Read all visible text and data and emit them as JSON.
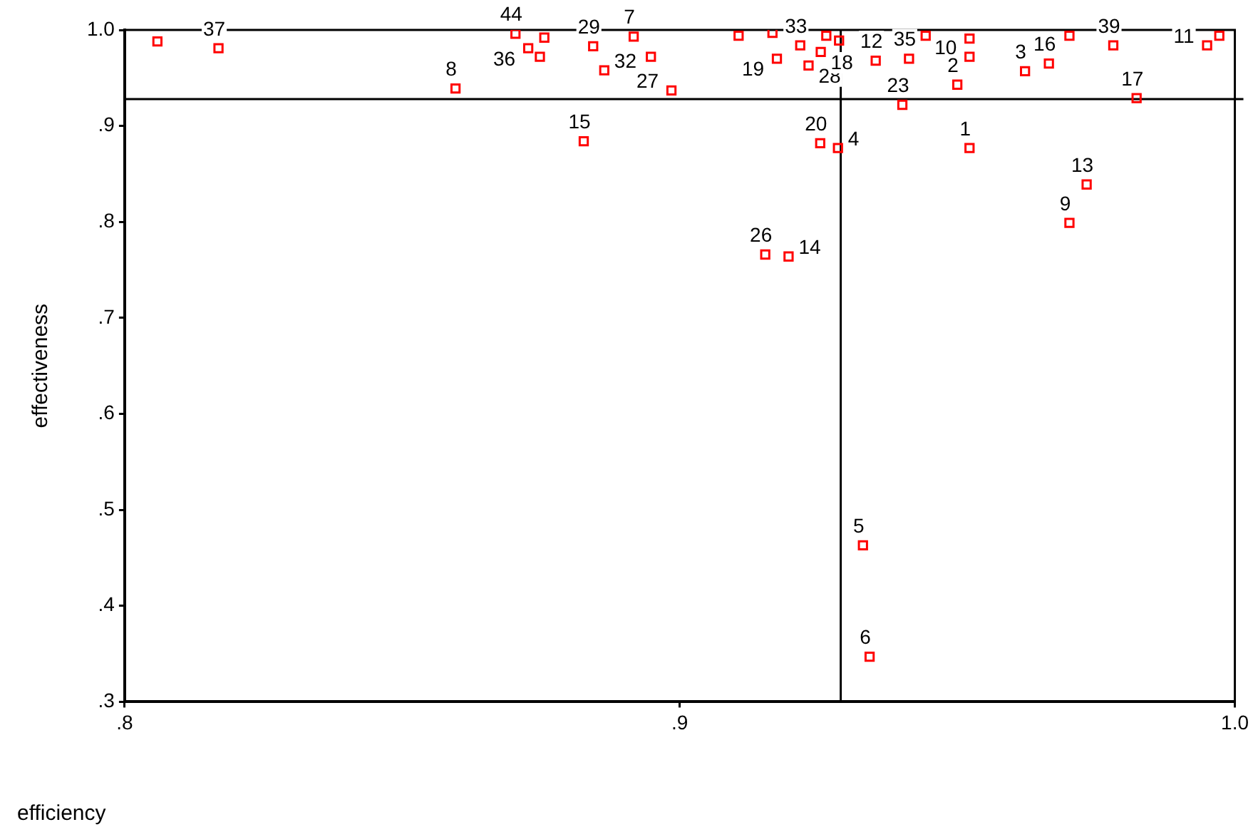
{
  "chart_data": {
    "type": "scatter",
    "xlabel": "efficiency",
    "ylabel": "effectiveness",
    "x": [
      0.8059,
      0.8169,
      0.8596,
      0.8704,
      0.8727,
      0.8756,
      0.8748,
      0.8844,
      0.8864,
      0.8917,
      0.8948,
      0.8985,
      0.8827,
      0.9106,
      0.9167,
      0.9175,
      0.9217,
      0.9232,
      0.9254,
      0.9264,
      0.9287,
      0.9353,
      0.9413,
      0.9443,
      0.9401,
      0.9522,
      0.9522,
      0.95,
      0.9522,
      0.9622,
      0.9665,
      0.9702,
      0.9781,
      0.9823,
      0.995,
      0.9972,
      0.9253,
      0.9285,
      0.9733,
      0.9702,
      0.9154,
      0.9196,
      0.933,
      0.9342
    ],
    "series": [
      {
        "color": "#ff0000",
        "values": [
          0.988,
          0.981,
          0.939,
          0.996,
          0.981,
          0.992,
          0.972,
          0.983,
          0.958,
          0.993,
          0.972,
          0.937,
          0.884,
          0.994,
          0.997,
          0.97,
          0.984,
          0.963,
          0.977,
          0.994,
          0.989,
          0.968,
          0.97,
          0.994,
          0.922,
          0.991,
          0.972,
          0.943,
          0.877,
          0.957,
          0.965,
          0.994,
          0.984,
          0.929,
          0.984,
          0.994,
          0.882,
          0.877,
          0.839,
          0.799,
          0.766,
          0.764,
          0.463,
          0.347
        ]
      }
    ],
    "annotations": [
      {
        "text": "37",
        "x": 0.8169,
        "y": 0.981
      },
      {
        "text": "8",
        "x": 0.8596,
        "y": 0.939
      },
      {
        "text": "44",
        "x": 0.8704,
        "y": 0.996
      },
      {
        "text": "36",
        "x": 0.8727,
        "y": 0.981
      },
      {
        "text": "29",
        "x": 0.8844,
        "y": 0.983
      },
      {
        "text": "32",
        "x": 0.8864,
        "y": 0.958
      },
      {
        "text": "7",
        "x": 0.8917,
        "y": 0.993
      },
      {
        "text": "27",
        "x": 0.8985,
        "y": 0.937
      },
      {
        "text": "15",
        "x": 0.8827,
        "y": 0.884
      },
      {
        "text": "19",
        "x": 0.9175,
        "y": 0.97
      },
      {
        "text": "33",
        "x": 0.9217,
        "y": 0.984
      },
      {
        "text": "28",
        "x": 0.9232,
        "y": 0.963
      },
      {
        "text": "18",
        "x": 0.9254,
        "y": 0.977
      },
      {
        "text": "12",
        "x": 0.9353,
        "y": 0.968
      },
      {
        "text": "35",
        "x": 0.9413,
        "y": 0.97
      },
      {
        "text": "23",
        "x": 0.9401,
        "y": 0.922
      },
      {
        "text": "10",
        "x": 0.9522,
        "y": 0.972
      },
      {
        "text": "2",
        "x": 0.95,
        "y": 0.943
      },
      {
        "text": "1",
        "x": 0.9522,
        "y": 0.877
      },
      {
        "text": "3",
        "x": 0.9622,
        "y": 0.957
      },
      {
        "text": "16",
        "x": 0.9665,
        "y": 0.965
      },
      {
        "text": "39",
        "x": 0.9781,
        "y": 0.984
      },
      {
        "text": "17",
        "x": 0.9823,
        "y": 0.929
      },
      {
        "text": "11",
        "x": 0.995,
        "y": 0.984
      },
      {
        "text": "20",
        "x": 0.9253,
        "y": 0.882
      },
      {
        "text": "4",
        "x": 0.9285,
        "y": 0.877
      },
      {
        "text": "13",
        "x": 0.9733,
        "y": 0.839
      },
      {
        "text": "9",
        "x": 0.9702,
        "y": 0.799
      },
      {
        "text": "26",
        "x": 0.9154,
        "y": 0.766
      },
      {
        "text": "14",
        "x": 0.9196,
        "y": 0.764
      },
      {
        "text": "5",
        "x": 0.933,
        "y": 0.463
      },
      {
        "text": "6",
        "x": 0.9342,
        "y": 0.347
      }
    ],
    "xlim": [
      0.8,
      1.0
    ],
    "xticks": [
      {
        "value": 0.8,
        "label": ".8"
      },
      {
        "value": 0.9,
        "label": ".9"
      },
      {
        "value": 1.0,
        "label": "1.0"
      }
    ],
    "ylim": [
      0.3,
      1.0
    ],
    "yticks": [
      {
        "value": 0.3,
        "label": ".3"
      },
      {
        "value": 0.4,
        "label": ".4"
      },
      {
        "value": 0.5,
        "label": ".5"
      },
      {
        "value": 0.6,
        "label": ".6"
      },
      {
        "value": 0.7,
        "label": ".7"
      },
      {
        "value": 0.8,
        "label": ".8"
      },
      {
        "value": 0.9,
        "label": ".9"
      },
      {
        "value": 1.0,
        "label": "1.0"
      }
    ],
    "ref_lines": [
      {
        "axis": "x",
        "value": 0.929
      },
      {
        "axis": "y",
        "value": 0.928
      }
    ],
    "grid": false,
    "legend": false,
    "marker": "square"
  }
}
